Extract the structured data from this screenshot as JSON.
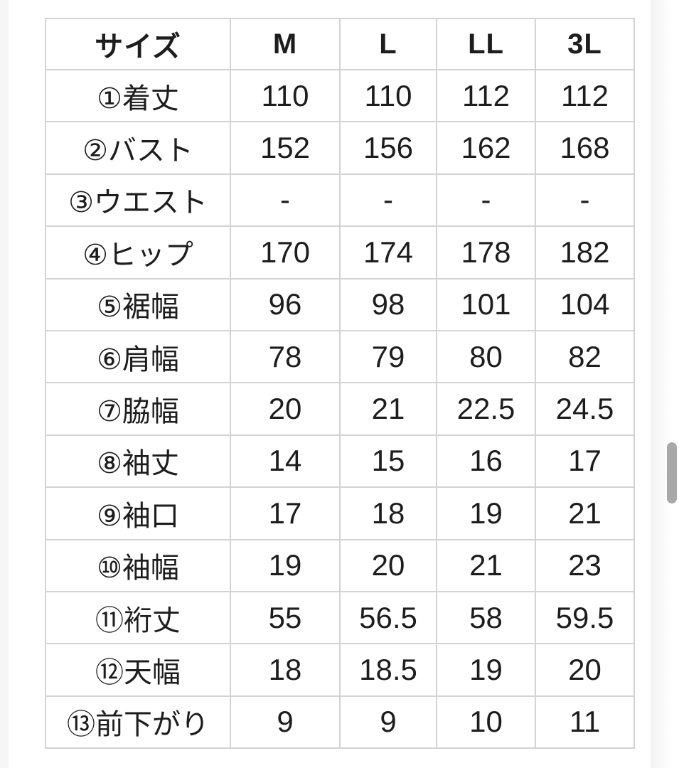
{
  "chart_data": {
    "type": "table",
    "columns": [
      "サイズ",
      "M",
      "L",
      "LL",
      "3L"
    ],
    "rows": [
      [
        "①着丈",
        "110",
        "110",
        "112",
        "112"
      ],
      [
        "②バスト",
        "152",
        "156",
        "162",
        "168"
      ],
      [
        "③ウエスト",
        "-",
        "-",
        "-",
        "-"
      ],
      [
        "④ヒップ",
        "170",
        "174",
        "178",
        "182"
      ],
      [
        "⑤裾幅",
        "96",
        "98",
        "101",
        "104"
      ],
      [
        "⑥肩幅",
        "78",
        "79",
        "80",
        "82"
      ],
      [
        "⑦脇幅",
        "20",
        "21",
        "22.5",
        "24.5"
      ],
      [
        "⑧袖丈",
        "14",
        "15",
        "16",
        "17"
      ],
      [
        "⑨袖口",
        "17",
        "18",
        "19",
        "21"
      ],
      [
        "⑩袖幅",
        "19",
        "20",
        "21",
        "23"
      ],
      [
        "⑪裄丈",
        "55",
        "56.5",
        "58",
        "59.5"
      ],
      [
        "⑫天幅",
        "18",
        "18.5",
        "19",
        "20"
      ],
      [
        "⑬前下がり",
        "9",
        "9",
        "10",
        "11"
      ]
    ],
    "layout": {
      "grid": "all-borders",
      "header_row": true,
      "first_column_is_label": true
    }
  },
  "colors": {
    "table_border": "#d3d3d3",
    "text": "#1d1d1d",
    "scrollbar_thumb": "#a8a8a8",
    "background": "#ffffff"
  }
}
